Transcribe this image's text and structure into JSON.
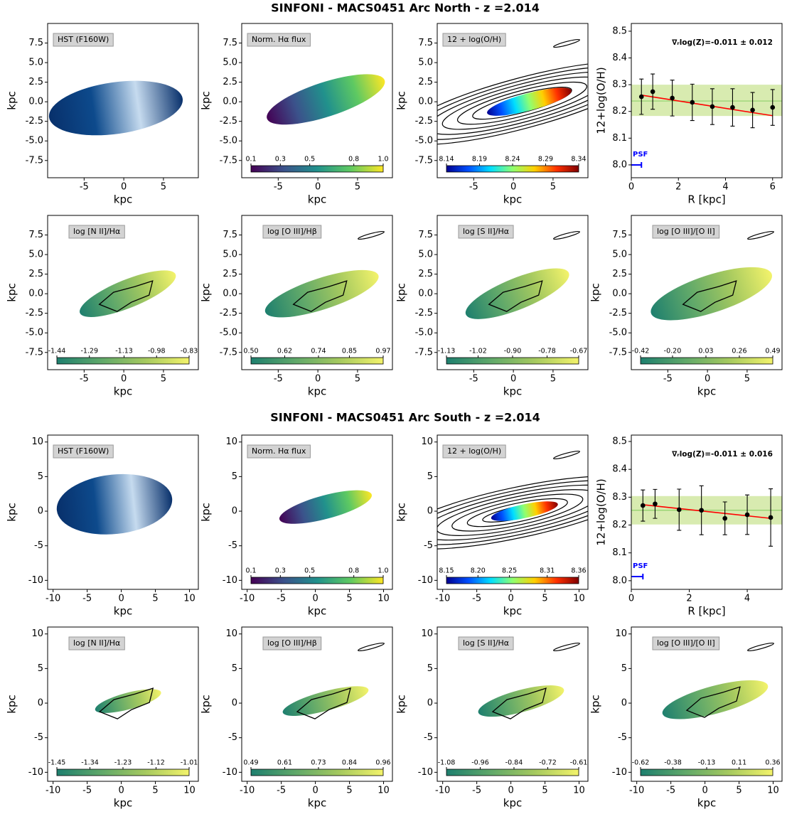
{
  "figure_titles": [
    "SINFONI - MACS0451 Arc North - z =2.014",
    "SINFONI - MACS0451 Arc South - z =2.014"
  ],
  "chart_data": [
    {
      "type": "map",
      "label": "HST (F160W)",
      "xlabel": "kpc",
      "ylabel": "kpc",
      "xlim": [
        -9.6,
        9.4
      ],
      "ylim": [
        -9.7,
        10.0
      ],
      "xticks": [
        -5,
        0,
        5
      ],
      "yticks": [
        -7.5,
        {
          "value": -5,
          "label": "-5.0"
        },
        -2.5,
        {
          "value": 0,
          "label": "0.0"
        },
        2.5,
        {
          "value": 5,
          "label": "5.0"
        },
        7.5
      ],
      "colormap": "hst"
    },
    {
      "type": "map",
      "label": "Norm. Hα flux",
      "xlabel": "kpc",
      "ylabel": "kpc",
      "xlim": [
        -9.6,
        9.4
      ],
      "ylim": [
        -9.7,
        10.0
      ],
      "xticks": [
        -5,
        0,
        5
      ],
      "yticks": [
        -7.5,
        {
          "value": -5,
          "label": "-5.0"
        },
        -2.5,
        {
          "value": 0,
          "label": "0.0"
        },
        2.5,
        {
          "value": 5,
          "label": "5.0"
        },
        7.5
      ],
      "colormap": "viridis",
      "clim": [
        0.1,
        1
      ],
      "colorbar_ticks": [
        0.1,
        0.3,
        0.5,
        0.8,
        {
          "value": 1,
          "label": "1.0"
        }
      ]
    },
    {
      "type": "map",
      "label": "12 + log(O/H)",
      "xlabel": "kpc",
      "ylabel": "kpc",
      "xlim": [
        -9.6,
        9.4
      ],
      "ylim": [
        -9.7,
        10.0
      ],
      "xticks": [
        -5,
        0,
        5
      ],
      "yticks": [
        -7.5,
        {
          "value": -5,
          "label": "-5.0"
        },
        -2.5,
        {
          "value": 0,
          "label": "0.0"
        },
        2.5,
        {
          "value": 5,
          "label": "5.0"
        },
        7.5
      ],
      "colormap": "jet",
      "clim": [
        8.14,
        8.34
      ],
      "colorbar_ticks": [
        8.14,
        8.19,
        8.24,
        8.29,
        8.34
      ]
    },
    {
      "type": "scatter",
      "annotation": "∇ᵣlog(Z)=-0.011 ± 0.012",
      "xlabel": "R [kpc]",
      "ylabel": "12+log(O/H)",
      "xlim": [
        0,
        6.4
      ],
      "ylim": [
        7.952,
        8.529
      ],
      "xticks": [
        0,
        2,
        4,
        6
      ],
      "yticks": [
        {
          "value": 8,
          "label": "8.0"
        },
        8.1,
        8.2,
        8.3,
        8.4,
        8.5
      ],
      "x": [
        0.43,
        0.91,
        1.74,
        2.59,
        3.44,
        4.3,
        5.15,
        6.0
      ],
      "y": [
        8.255,
        8.274,
        8.25,
        8.234,
        8.218,
        8.215,
        8.205,
        8.215
      ],
      "yerr": [
        0.066,
        0.066,
        0.067,
        0.068,
        0.067,
        0.07,
        0.066,
        0.067
      ],
      "color": "black",
      "fit": {
        "x": [
          0.43,
          6.0
        ],
        "y": [
          8.261,
          8.184
        ],
        "color": "red"
      },
      "band": [
        8.183,
        8.3
      ],
      "mean": 8.239,
      "band_color": "#d8ebb0",
      "mean_color": "#8fd16a",
      "psf_label": "PSF",
      "psf_radius": 0.43,
      "psf_color": "blue"
    },
    {
      "type": "map",
      "label": "log [N II]/Hα",
      "xlabel": "kpc",
      "ylabel": "kpc",
      "xlim": [
        -9.6,
        9.4
      ],
      "ylim": [
        -9.7,
        10.0
      ],
      "xticks": [
        -5,
        0,
        5
      ],
      "yticks": [
        -7.5,
        {
          "value": -5,
          "label": "-5.0"
        },
        -2.5,
        {
          "value": 0,
          "label": "0.0"
        },
        2.5,
        {
          "value": 5,
          "label": "5.0"
        },
        7.5
      ],
      "colormap": "summer",
      "clim": [
        -1.44,
        -0.83
      ],
      "colorbar_ticks": [
        -1.44,
        -1.29,
        -1.13,
        -0.98,
        -0.83
      ]
    },
    {
      "type": "map",
      "label": "log [O III]/Hβ",
      "xlabel": "kpc",
      "ylabel": "kpc",
      "xlim": [
        -9.6,
        9.4
      ],
      "ylim": [
        -9.7,
        10.0
      ],
      "xticks": [
        -5,
        0,
        5
      ],
      "yticks": [
        -7.5,
        {
          "value": -5,
          "label": "-5.0"
        },
        -2.5,
        {
          "value": 0,
          "label": "0.0"
        },
        2.5,
        {
          "value": 5,
          "label": "5.0"
        },
        7.5
      ],
      "colormap": "summer",
      "clim": [
        0.5,
        0.97
      ],
      "colorbar_ticks": [
        {
          "value": 0.5,
          "label": "0.50"
        },
        0.62,
        0.74,
        0.85,
        0.97
      ]
    },
    {
      "type": "map",
      "label": "log [S II]/Hα",
      "xlabel": "kpc",
      "ylabel": "kpc",
      "xlim": [
        -9.6,
        9.4
      ],
      "ylim": [
        -9.7,
        10.0
      ],
      "xticks": [
        -5,
        0,
        5
      ],
      "yticks": [
        -7.5,
        {
          "value": -5,
          "label": "-5.0"
        },
        -2.5,
        {
          "value": 0,
          "label": "0.0"
        },
        2.5,
        {
          "value": 5,
          "label": "5.0"
        },
        7.5
      ],
      "colormap": "summer",
      "clim": [
        -1.13,
        -0.67
      ],
      "colorbar_ticks": [
        -1.13,
        -1.02,
        {
          "value": -0.9,
          "label": "-0.90"
        },
        -0.78,
        -0.67
      ]
    },
    {
      "type": "map",
      "label": "log [O III]/[O II]",
      "xlabel": "kpc",
      "ylabel": "kpc",
      "xlim": [
        -9.6,
        9.4
      ],
      "ylim": [
        -9.7,
        10.0
      ],
      "xticks": [
        -5,
        0,
        5
      ],
      "yticks": [
        -7.5,
        {
          "value": -5,
          "label": "-5.0"
        },
        -2.5,
        {
          "value": 0,
          "label": "0.0"
        },
        2.5,
        {
          "value": 5,
          "label": "5.0"
        },
        7.5
      ],
      "colormap": "summer",
      "clim": [
        -0.42,
        0.49
      ],
      "colorbar_ticks": [
        -0.42,
        {
          "value": -0.2,
          "label": "-0.20"
        },
        0.03,
        0.26,
        0.49
      ]
    },
    {
      "type": "map",
      "label": "HST (F160W)",
      "xlabel": "kpc",
      "ylabel": "kpc",
      "xlim": [
        -10.8,
        11.3
      ],
      "ylim": [
        -11.3,
        11.0
      ],
      "xticks": [
        -10,
        -5,
        0,
        5,
        10
      ],
      "yticks": [
        -10,
        -5,
        0,
        5,
        10
      ],
      "colormap": "hst"
    },
    {
      "type": "map",
      "label": "Norm. Hα flux",
      "xlabel": "kpc",
      "ylabel": "kpc",
      "xlim": [
        -10.8,
        11.3
      ],
      "ylim": [
        -11.3,
        11.0
      ],
      "xticks": [
        -10,
        -5,
        0,
        5,
        10
      ],
      "yticks": [
        -10,
        -5,
        0,
        5,
        10
      ],
      "colormap": "viridis",
      "clim": [
        0.1,
        1
      ],
      "colorbar_ticks": [
        0.1,
        0.3,
        0.5,
        0.8,
        {
          "value": 1,
          "label": "1.0"
        }
      ]
    },
    {
      "type": "map",
      "label": "12 + log(O/H)",
      "xlabel": "kpc",
      "ylabel": "kpc",
      "xlim": [
        -10.8,
        11.3
      ],
      "ylim": [
        -11.3,
        11.0
      ],
      "xticks": [
        -10,
        -5,
        0,
        5,
        10
      ],
      "yticks": [
        -10,
        -5,
        0,
        5,
        10
      ],
      "colormap": "jet",
      "clim": [
        8.15,
        8.36
      ],
      "colorbar_ticks": [
        8.15,
        {
          "value": 8.2,
          "label": "8.20"
        },
        8.25,
        8.31,
        8.36
      ]
    },
    {
      "type": "scatter",
      "annotation": "∇ᵣlog(Z)=-0.011 ± 0.016",
      "xlabel": "R [kpc]",
      "ylabel": "12+log(O/H)",
      "xlim": [
        0,
        5.2
      ],
      "ylim": [
        7.969,
        8.523
      ],
      "xticks": [
        0,
        2,
        4
      ],
      "yticks": [
        {
          "value": 8,
          "label": "8.0"
        },
        8.1,
        8.2,
        8.3,
        8.4,
        8.5
      ],
      "x": [
        0.4,
        0.82,
        1.65,
        2.42,
        3.23,
        4.0,
        4.81
      ],
      "y": [
        8.27,
        8.276,
        8.255,
        8.253,
        8.224,
        8.237,
        8.227
      ],
      "yerr": [
        0.056,
        0.052,
        0.074,
        0.088,
        0.059,
        0.071,
        0.103
      ],
      "color": "black",
      "fit": {
        "x": [
          0.4,
          4.81
        ],
        "y": [
          8.273,
          8.224
        ],
        "color": "red"
      },
      "band": [
        8.202,
        8.304
      ],
      "mean": 8.253,
      "band_color": "#d8ebb0",
      "mean_color": "#8fd16a",
      "psf_label": "PSF",
      "psf_radius": 0.4,
      "psf_color": "blue"
    },
    {
      "type": "map",
      "label": "log [N II]/Hα",
      "xlabel": "kpc",
      "ylabel": "kpc",
      "xlim": [
        -10.8,
        11.3
      ],
      "ylim": [
        -11.3,
        11.0
      ],
      "xticks": [
        -10,
        -5,
        0,
        5,
        10
      ],
      "yticks": [
        -10,
        -5,
        0,
        5,
        10
      ],
      "colormap": "summer",
      "clim": [
        -1.45,
        -1.01
      ],
      "colorbar_ticks": [
        -1.45,
        -1.34,
        -1.23,
        -1.12,
        -1.01
      ]
    },
    {
      "type": "map",
      "label": "log [O III]/Hβ",
      "xlabel": "kpc",
      "ylabel": "kpc",
      "xlim": [
        -10.8,
        11.3
      ],
      "ylim": [
        -11.3,
        11.0
      ],
      "xticks": [
        -10,
        -5,
        0,
        5,
        10
      ],
      "yticks": [
        -10,
        -5,
        0,
        5,
        10
      ],
      "colormap": "summer",
      "clim": [
        0.49,
        0.96
      ],
      "colorbar_ticks": [
        0.49,
        0.61,
        0.73,
        0.84,
        0.96
      ]
    },
    {
      "type": "map",
      "label": "log [S II]/Hα",
      "xlabel": "kpc",
      "ylabel": "kpc",
      "xlim": [
        -10.8,
        11.3
      ],
      "ylim": [
        -11.3,
        11.0
      ],
      "xticks": [
        -10,
        -5,
        0,
        5,
        10
      ],
      "yticks": [
        -10,
        -5,
        0,
        5,
        10
      ],
      "colormap": "summer",
      "clim": [
        -1.08,
        -0.61
      ],
      "colorbar_ticks": [
        -1.08,
        -0.96,
        -0.84,
        -0.72,
        -0.61
      ]
    },
    {
      "type": "map",
      "label": "log [O III]/[O II]",
      "xlabel": "kpc",
      "ylabel": "kpc",
      "xlim": [
        -10.8,
        11.3
      ],
      "ylim": [
        -11.3,
        11.0
      ],
      "xticks": [
        -10,
        -5,
        0,
        5,
        10
      ],
      "yticks": [
        -10,
        -5,
        0,
        5,
        10
      ],
      "colormap": "summer",
      "clim": [
        -0.62,
        0.36
      ],
      "colorbar_ticks": [
        -0.62,
        -0.38,
        -0.13,
        0.11,
        0.36
      ]
    }
  ]
}
